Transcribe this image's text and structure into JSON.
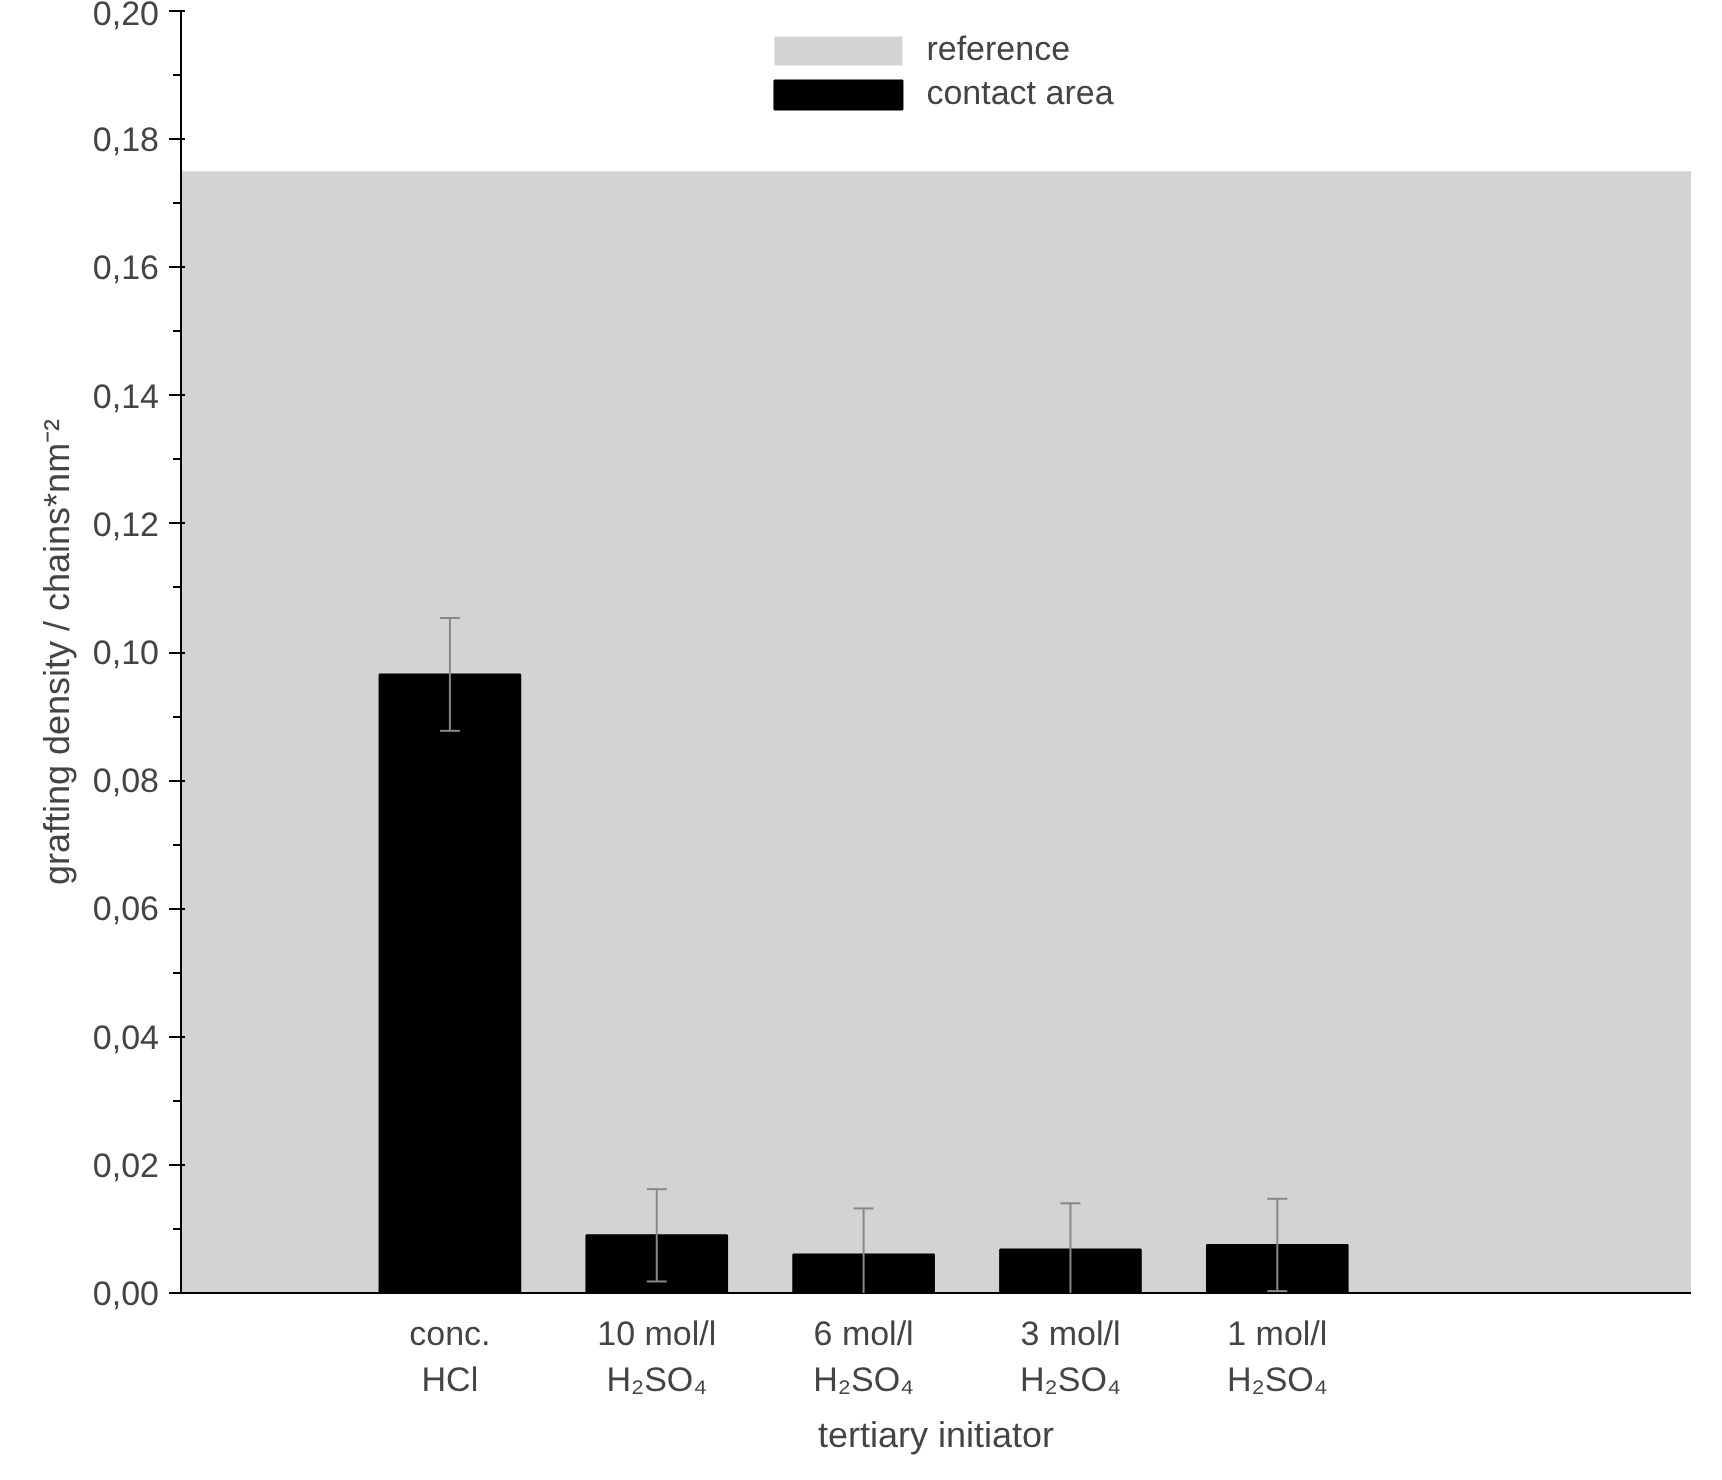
{
  "chart_data": {
    "type": "bar",
    "xlabel": "tertiary initiator",
    "ylabel": "grafting density / chains*nm⁻²",
    "categories": [
      "conc.\nHCl",
      "10 mol/l\nH₂SO₄",
      "6 mol/l\nH₂SO₄",
      "3 mol/l\nH₂SO₄",
      "1 mol/l\nH₂SO₄"
    ],
    "series": [
      {
        "name": "contact area",
        "color": "#000000",
        "values": [
          0.0965,
          0.009,
          0.006,
          0.0068,
          0.0075
        ],
        "errors": [
          0.0088,
          0.0072,
          0.0072,
          0.0072,
          0.0072
        ]
      }
    ],
    "bands": [
      {
        "axis": "y",
        "from": 0,
        "to": 0.175,
        "label": "reference",
        "color": "#d3d3d3"
      }
    ],
    "ylim": [
      0,
      0.2
    ],
    "yticks": [
      {
        "value": 0,
        "label": "0,00"
      },
      {
        "value": 0.02,
        "label": "0,02"
      },
      {
        "value": 0.04,
        "label": "0,04"
      },
      {
        "value": 0.06,
        "label": "0,06"
      },
      {
        "value": 0.08,
        "label": "0,08"
      },
      {
        "value": 0.1,
        "label": "0,10"
      },
      {
        "value": 0.12,
        "label": "0,12"
      },
      {
        "value": 0.14,
        "label": "0,14"
      },
      {
        "value": 0.16,
        "label": "0,16"
      },
      {
        "value": 0.18,
        "label": "0,18"
      },
      {
        "value": 0.2,
        "label": "0,20"
      }
    ],
    "grid": false,
    "legend": "top"
  }
}
